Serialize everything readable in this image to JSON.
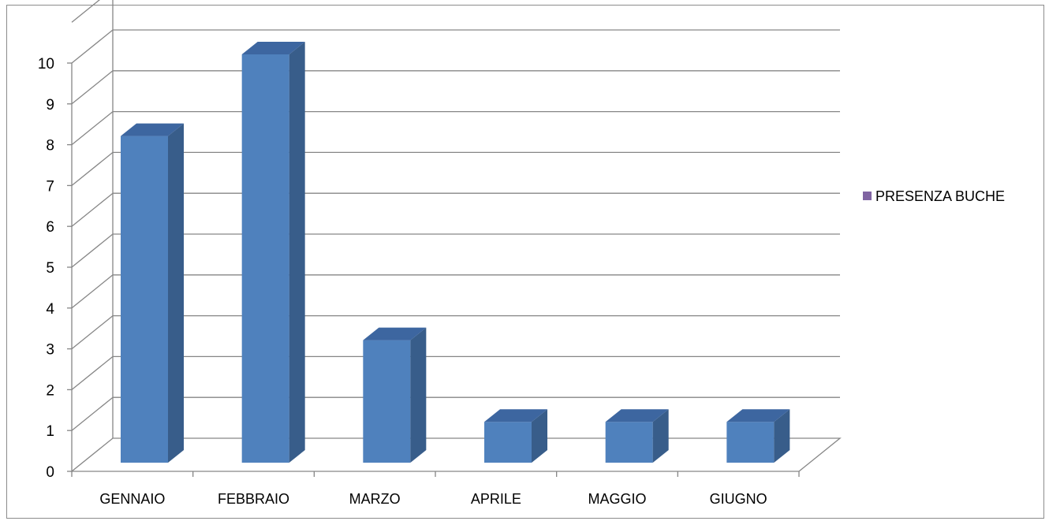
{
  "chart_data": {
    "type": "bar",
    "style": "3d-column",
    "categories": [
      "GENNAIO",
      "FEBBRAIO",
      "MARZO",
      "APRILE",
      "MAGGIO",
      "GIUGNO"
    ],
    "series": [
      {
        "name": "PRESENZA BUCHE",
        "values": [
          8,
          10,
          3,
          1,
          1,
          1
        ]
      }
    ],
    "y_ticks": [
      "0",
      "1",
      "2",
      "3",
      "4",
      "5",
      "6",
      "7",
      "8",
      "9",
      "10"
    ],
    "ylim": [
      0,
      10
    ],
    "grid": true,
    "legend_position": "right",
    "colors": {
      "bar_front": "#4f81bd",
      "bar_side": "#385d8a",
      "bar_top": "#3d66a0",
      "legend_marker": "#8064a2",
      "grid": "#868686"
    }
  }
}
